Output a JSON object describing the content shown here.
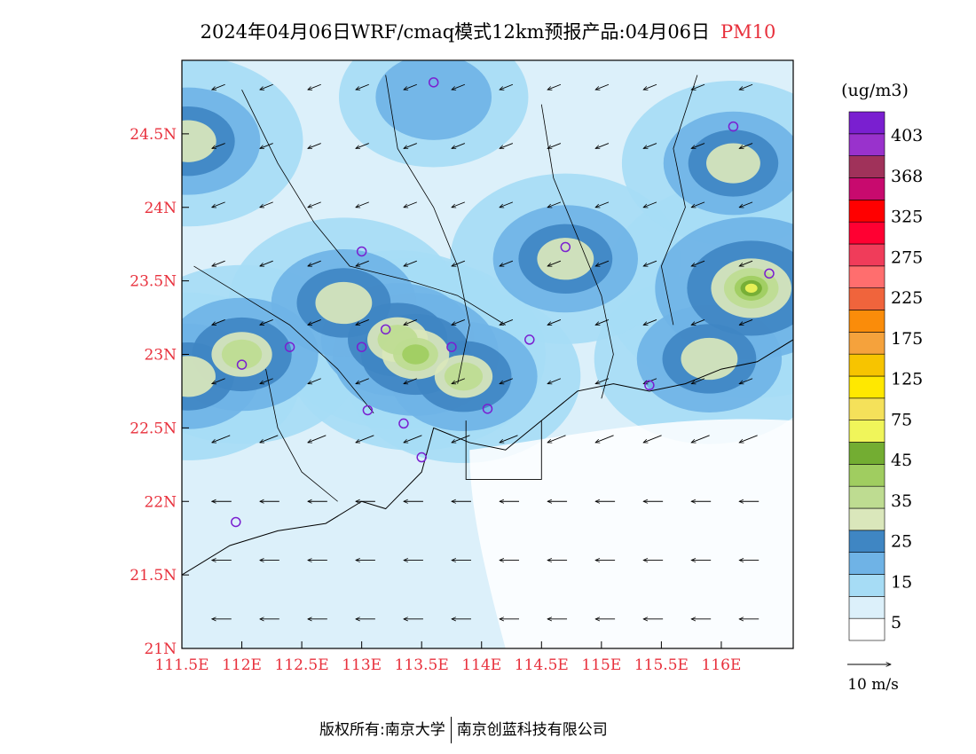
{
  "header": {
    "title": "2024年04月06日WRF/cmaq模式12km预报产品:04月06日",
    "pollutant": "PM10"
  },
  "footer": {
    "left": "版权所有:南京大学",
    "right": "南京创蓝科技有限公司"
  },
  "colors": {
    "axis_labels": "#e8303c",
    "station_marker": "#7a1fd0"
  },
  "chart_data": {
    "type": "heatmap",
    "title": "2024年04月06日WRF/cmaq模式12km预报产品:04月06日 PM10",
    "x_axis": {
      "range": [
        111.5,
        116.6
      ],
      "ticks": [
        111.5,
        112,
        112.5,
        113,
        113.5,
        114,
        114.5,
        115,
        115.5,
        116
      ],
      "tick_labels": [
        "111.5E",
        "112E",
        "112.5E",
        "113E",
        "113.5E",
        "114E",
        "114.5E",
        "115E",
        "115.5E",
        "116E"
      ]
    },
    "y_axis": {
      "range": [
        21,
        25
      ],
      "ticks": [
        21,
        21.5,
        22,
        22.5,
        23,
        23.5,
        24,
        24.5
      ],
      "tick_labels": [
        "21N",
        "21.5N",
        "22N",
        "22.5N",
        "23N",
        "23.5N",
        "24N",
        "24.5N"
      ]
    },
    "colorbar": {
      "unit": "(ug/m3)",
      "labels": [
        "5",
        "15",
        "25",
        "35",
        "45",
        "75",
        "125",
        "175",
        "225",
        "275",
        "325",
        "368",
        "403"
      ],
      "colors": [
        "#ffffff",
        "#dcf0fa",
        "#a6dcf5",
        "#6fb3e6",
        "#3f86c3",
        "#dae7bb",
        "#bedc91",
        "#a0cd60",
        "#73ad32",
        "#f0f55a",
        "#f5e15a",
        "#ffe800",
        "#f7c400",
        "#f5a23c",
        "#fa8c0a",
        "#f0643c",
        "#ff6e6e",
        "#f03c5a",
        "#ff0032",
        "#ff0000",
        "#c80a6e",
        "#a0325a",
        "#9932cc",
        "#7a1fd0"
      ]
    },
    "wind_reference": {
      "label": "10 m/s"
    },
    "stations": [
      {
        "lon": 113.6,
        "lat": 24.85
      },
      {
        "lon": 116.1,
        "lat": 24.55
      },
      {
        "lon": 113.0,
        "lat": 23.7
      },
      {
        "lon": 114.7,
        "lat": 23.73
      },
      {
        "lon": 116.4,
        "lat": 23.55
      },
      {
        "lon": 112.4,
        "lat": 23.05
      },
      {
        "lon": 113.0,
        "lat": 23.05
      },
      {
        "lon": 113.2,
        "lat": 23.17
      },
      {
        "lon": 113.75,
        "lat": 23.05
      },
      {
        "lon": 114.4,
        "lat": 23.1
      },
      {
        "lon": 112.0,
        "lat": 22.93
      },
      {
        "lon": 113.05,
        "lat": 22.62
      },
      {
        "lon": 113.35,
        "lat": 22.53
      },
      {
        "lon": 114.05,
        "lat": 22.63
      },
      {
        "lon": 115.4,
        "lat": 22.79
      },
      {
        "lon": 113.5,
        "lat": 22.3
      },
      {
        "lon": 111.95,
        "lat": 21.86
      }
    ],
    "hotspots": [
      {
        "lon": 113.45,
        "lat": 23.0,
        "value": 35
      },
      {
        "lon": 113.3,
        "lat": 23.1,
        "value": 30
      },
      {
        "lon": 113.85,
        "lat": 22.85,
        "value": 28
      },
      {
        "lon": 116.25,
        "lat": 23.45,
        "value": 45
      },
      {
        "lon": 115.9,
        "lat": 22.97,
        "value": 27
      },
      {
        "lon": 112.85,
        "lat": 23.35,
        "value": 27
      },
      {
        "lon": 114.7,
        "lat": 23.65,
        "value": 27
      },
      {
        "lon": 112.0,
        "lat": 23.0,
        "value": 30
      },
      {
        "lon": 111.55,
        "lat": 24.45,
        "value": 27
      },
      {
        "lon": 111.55,
        "lat": 22.85,
        "value": 26
      },
      {
        "lon": 116.1,
        "lat": 24.3,
        "value": 25
      },
      {
        "lon": 113.6,
        "lat": 24.75,
        "value": 16
      }
    ]
  }
}
